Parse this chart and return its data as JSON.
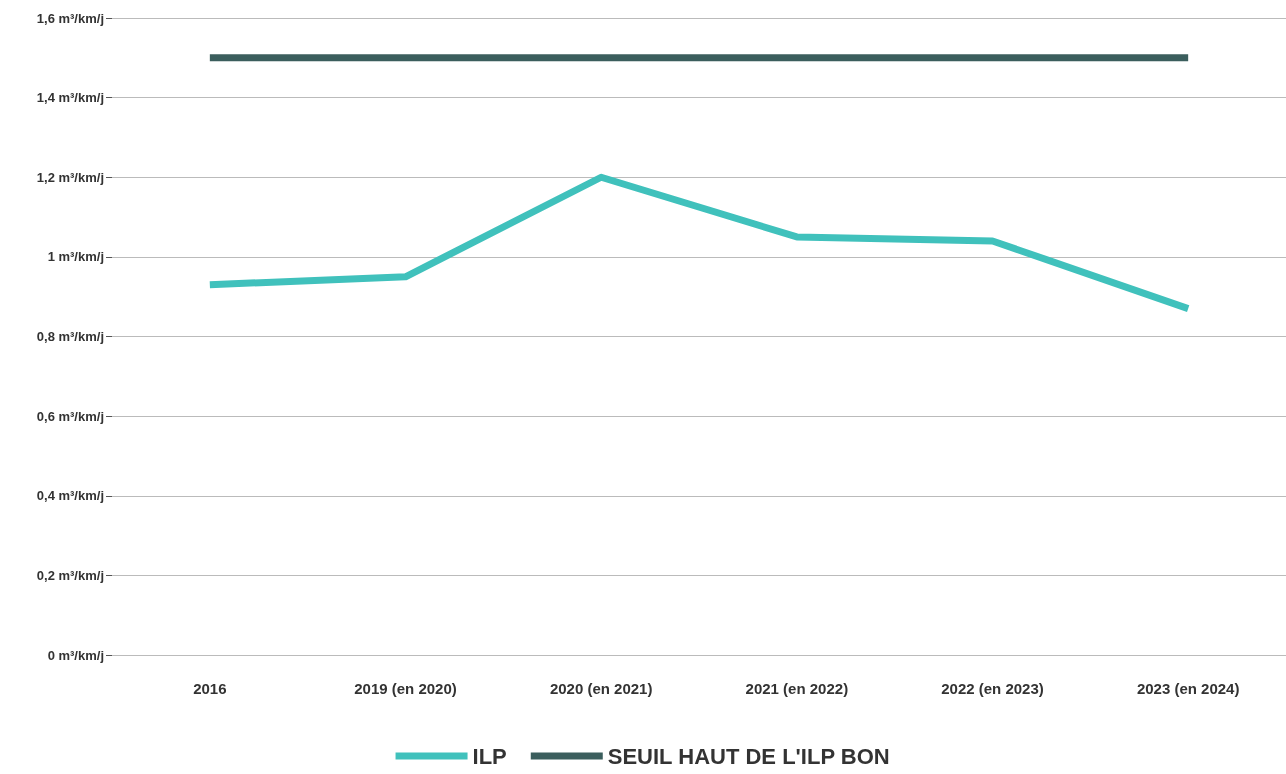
{
  "chart_data": {
    "type": "line",
    "categories": [
      "2016",
      "2019 (en 2020)",
      "2020 (en 2021)",
      "2021 (en 2022)",
      "2022 (en 2023)",
      "2023 (en 2024)"
    ],
    "series": [
      {
        "name": "ILP",
        "color": "#40c1bc",
        "values": [
          0.93,
          0.95,
          1.2,
          1.05,
          1.04,
          0.87
        ]
      },
      {
        "name": "SEUIL HAUT DE L'ILP BON",
        "color": "#3b5e5d",
        "values": [
          1.5,
          1.5,
          1.5,
          1.5,
          1.5,
          1.5
        ]
      }
    ],
    "ylim": [
      0,
      1.6
    ],
    "yticks": [
      {
        "value": 0,
        "label": "0 m³/km/j"
      },
      {
        "value": 0.2,
        "label": "0,2 m³/km/j"
      },
      {
        "value": 0.4,
        "label": "0,4 m³/km/j"
      },
      {
        "value": 0.6,
        "label": "0,6 m³/km/j"
      },
      {
        "value": 0.8,
        "label": "0,8 m³/km/j"
      },
      {
        "value": 1,
        "label": "1 m³/km/j"
      },
      {
        "value": 1.2,
        "label": "1,2 m³/km/j"
      },
      {
        "value": 1.4,
        "label": "1,4 m³/km/j"
      },
      {
        "value": 1.6,
        "label": "1,6 m³/km/j"
      }
    ],
    "grid": "y",
    "legend": "bottom",
    "marker": "none",
    "line_style": "solid"
  }
}
